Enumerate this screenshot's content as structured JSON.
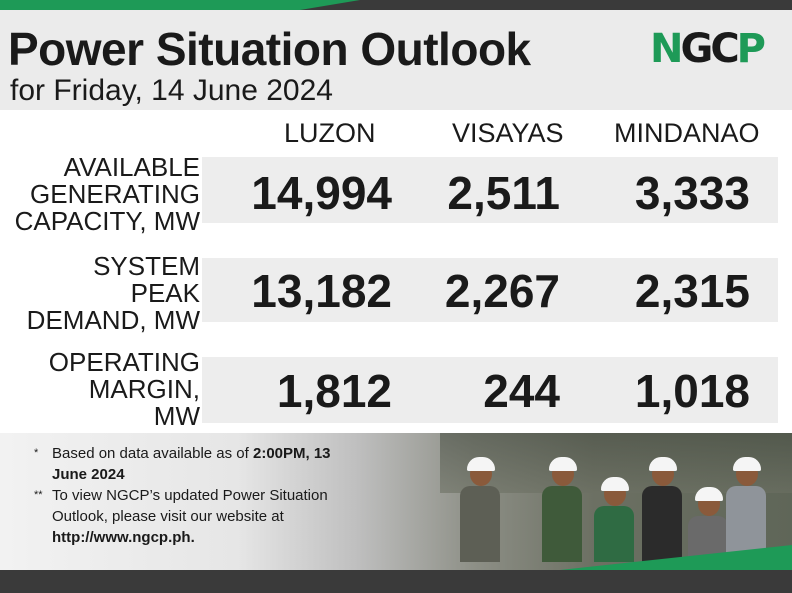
{
  "header": {
    "title": "Power Situation Outlook",
    "subtitle": "for Friday, 14 June 2024",
    "logo_text": "NGCP"
  },
  "columns": [
    "LUZON",
    "VISAYAS",
    "MINDANAO"
  ],
  "rows": [
    {
      "label_lines": [
        "AVAILABLE",
        "GENERATING",
        "CAPACITY, MW"
      ],
      "values": [
        "14,994",
        "2,511",
        "3,333"
      ]
    },
    {
      "label_lines": [
        "SYSTEM",
        "PEAK",
        "DEMAND, MW"
      ],
      "values": [
        "13,182",
        "2,267",
        "2,315"
      ]
    },
    {
      "label_lines": [
        "OPERATING",
        "MARGIN,",
        "MW"
      ],
      "values": [
        "1,812",
        "244",
        "1,018"
      ]
    }
  ],
  "notes": [
    {
      "mark": "*",
      "text_before": "Based on data available as of ",
      "bold": "2:00PM, 13 June 2024",
      "text_after": ""
    },
    {
      "mark": "**",
      "text_before": "To view NGCP’s updated Power Situation Outlook, please visit our website at ",
      "bold": "http://www.ngcp.ph.",
      "text_after": ""
    }
  ],
  "colors": {
    "brand_green": "#1e9a57",
    "dark_bar": "#3a3a3a",
    "row_bg": "#ededed",
    "header_bg": "#ebebeb"
  },
  "photo": {
    "description_icon": "field-workers-photo"
  }
}
